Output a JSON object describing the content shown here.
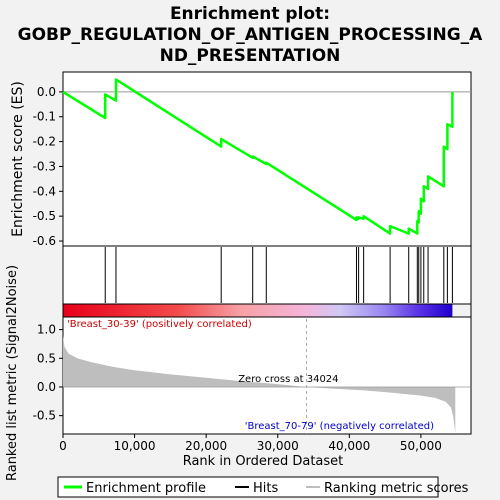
{
  "chart_data": {
    "type": "line",
    "title_lines": [
      "Enrichment plot:",
      "GOBP_REGULATION_OF_ANTIGEN_PROCESSING_A",
      "ND_PRESENTATION"
    ],
    "es_panel": {
      "ylabel": "Enrichment score (ES)",
      "ylim": [
        -0.62,
        0.08
      ],
      "y_ticks": [
        0.0,
        -0.1,
        -0.2,
        -0.3,
        -0.4,
        -0.5,
        -0.6
      ],
      "y_tick_labels": [
        "0.0",
        "-0.1",
        "-0.2",
        "-0.3",
        "-0.4",
        "-0.5",
        "-0.6"
      ],
      "grid": false,
      "series": [
        {
          "name": "Enrichment profile",
          "color": "#00ff00",
          "x": [
            0,
            5900,
            5900,
            7400,
            7400,
            22100,
            22100,
            26500,
            26500,
            28400,
            28400,
            41000,
            41000,
            41300,
            41300,
            42000,
            42000,
            45700,
            45700,
            48300,
            48300,
            49500,
            49500,
            49700,
            49700,
            50000,
            50000,
            50400,
            50400,
            51000,
            51000,
            53200,
            53200,
            53700,
            53700,
            54400,
            54400
          ],
          "y": [
            0.0,
            -0.105,
            -0.01,
            -0.035,
            0.05,
            -0.22,
            -0.19,
            -0.265,
            -0.26,
            -0.29,
            -0.285,
            -0.515,
            -0.505,
            -0.51,
            -0.505,
            -0.51,
            -0.5,
            -0.57,
            -0.54,
            -0.57,
            -0.55,
            -0.57,
            -0.52,
            -0.525,
            -0.48,
            -0.49,
            -0.43,
            -0.44,
            -0.38,
            -0.39,
            -0.34,
            -0.38,
            -0.22,
            -0.23,
            -0.13,
            -0.14,
            0.0
          ]
        }
      ]
    },
    "hits": {
      "name": "Hits",
      "positions": [
        5900,
        7400,
        22100,
        26500,
        28400,
        41000,
        41300,
        42000,
        45700,
        48300,
        49500,
        49700,
        50000,
        50400,
        51000,
        53200,
        53700,
        54400
      ]
    },
    "ranking_bar": {
      "gradient_stops": [
        {
          "x": 0,
          "color": "#e8001a"
        },
        {
          "x": 16000,
          "color": "#f24a4a"
        },
        {
          "x": 25000,
          "color": "#f7a0a5"
        },
        {
          "x": 34000,
          "color": "#f5b5d9"
        },
        {
          "x": 39000,
          "color": "#d0c8f5"
        },
        {
          "x": 45000,
          "color": "#9a88f0"
        },
        {
          "x": 50000,
          "color": "#5a34e6"
        },
        {
          "x": 54800,
          "color": "#2000cc"
        }
      ]
    },
    "metric_panel": {
      "ylabel": "Ranked list metric (Signal2Noise)",
      "xlabel": "Rank in Ordered Dataset",
      "xlim": [
        0,
        57000
      ],
      "ylim": [
        -0.82,
        1.22
      ],
      "y_ticks": [
        1.0,
        0.5,
        0.0,
        -0.5
      ],
      "y_tick_labels": [
        "1.0",
        "0.5",
        "0.0",
        "-0.5"
      ],
      "x_ticks": [
        0,
        10000,
        20000,
        30000,
        40000,
        50000
      ],
      "x_tick_labels": [
        "0",
        "10,000",
        "20,000",
        "30,000",
        "40,000",
        "50,000"
      ],
      "fill_color": "#bebebe",
      "metric_profile": {
        "x": [
          0,
          200,
          800,
          2000,
          4000,
          7000,
          10000,
          15000,
          20000,
          25000,
          30000,
          34024,
          38000,
          42000,
          46000,
          50000,
          52000,
          53500,
          54200,
          54500,
          54800
        ],
        "y": [
          0.9,
          0.7,
          0.58,
          0.5,
          0.43,
          0.35,
          0.29,
          0.22,
          0.16,
          0.1,
          0.05,
          0.0,
          -0.03,
          -0.06,
          -0.1,
          -0.15,
          -0.19,
          -0.26,
          -0.36,
          -0.5,
          -0.8
        ]
      },
      "zero_cross_x": 34024,
      "zero_cross_label": "Zero cross at 34024",
      "pos_label": "'Breast_30-39' (positively correlated)",
      "neg_label": "'Breast_70-79' (negatively correlated)",
      "pos_color": "#cc0000",
      "neg_color": "#0000cc"
    },
    "legend": [
      {
        "label": "Enrichment profile",
        "color": "#00ff00",
        "kind": "line"
      },
      {
        "label": "Hits",
        "color": "#000000",
        "kind": "line"
      },
      {
        "label": "Ranking metric scores",
        "color": "#bebebe",
        "kind": "line"
      }
    ]
  }
}
